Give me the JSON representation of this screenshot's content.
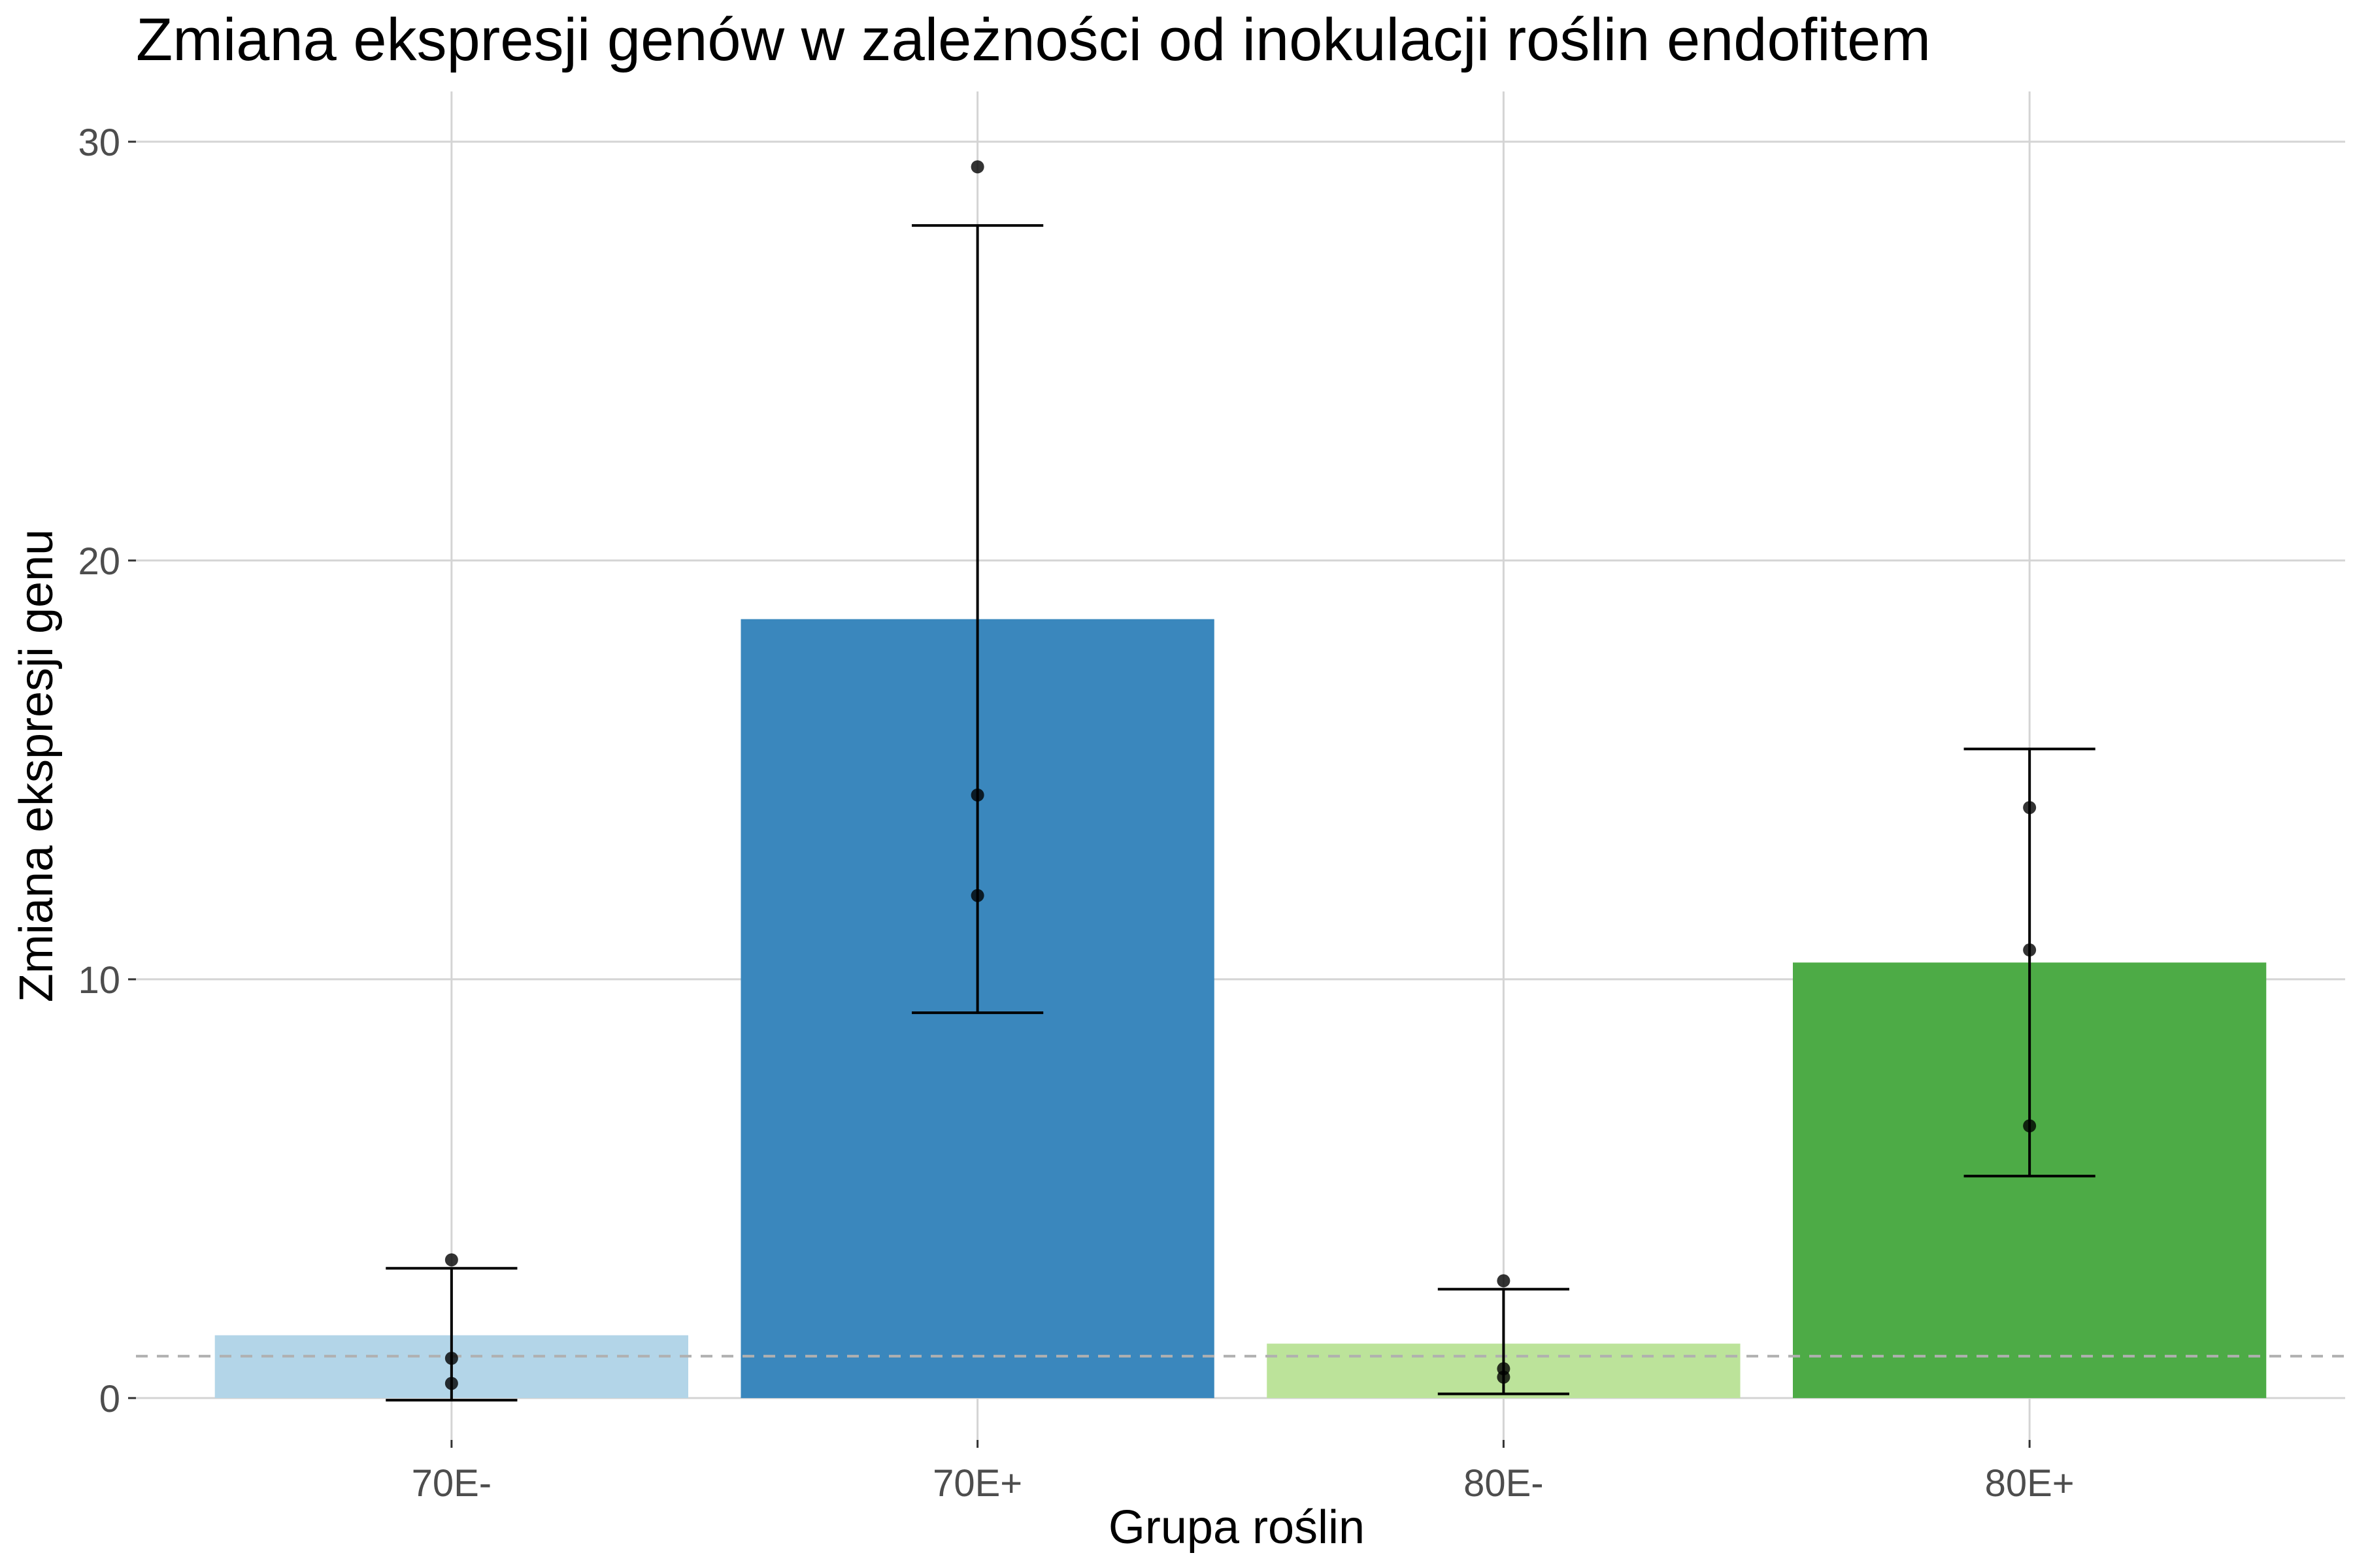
{
  "chart_data": {
    "type": "bar",
    "title": "Zmiana ekspresji genów w zależności od inokulacji roślin endofitem",
    "xlabel": "Grupa roślin",
    "ylabel": "Zmiana ekspresji genu",
    "categories": [
      "70E-",
      "70E+",
      "80E-",
      "80E+"
    ],
    "values": [
      1.5,
      18.6,
      1.3,
      10.4
    ],
    "error_low": [
      -0.05,
      9.2,
      0.1,
      5.3
    ],
    "error_high": [
      3.1,
      28.0,
      2.6,
      15.5
    ],
    "points": [
      [
        3.3,
        0.95,
        0.35
      ],
      [
        29.4,
        14.4,
        12.0
      ],
      [
        2.8,
        0.7,
        0.5
      ],
      [
        14.1,
        10.7,
        6.5
      ]
    ],
    "bar_colors": [
      "#b3d5e8",
      "#3a87bd",
      "#bce39a",
      "#4dab46"
    ],
    "reference_line": 1,
    "ylim": [
      -1.0,
      31.2
    ],
    "yticks": [
      0,
      10,
      20,
      30
    ],
    "grid": true,
    "legend": "none"
  }
}
